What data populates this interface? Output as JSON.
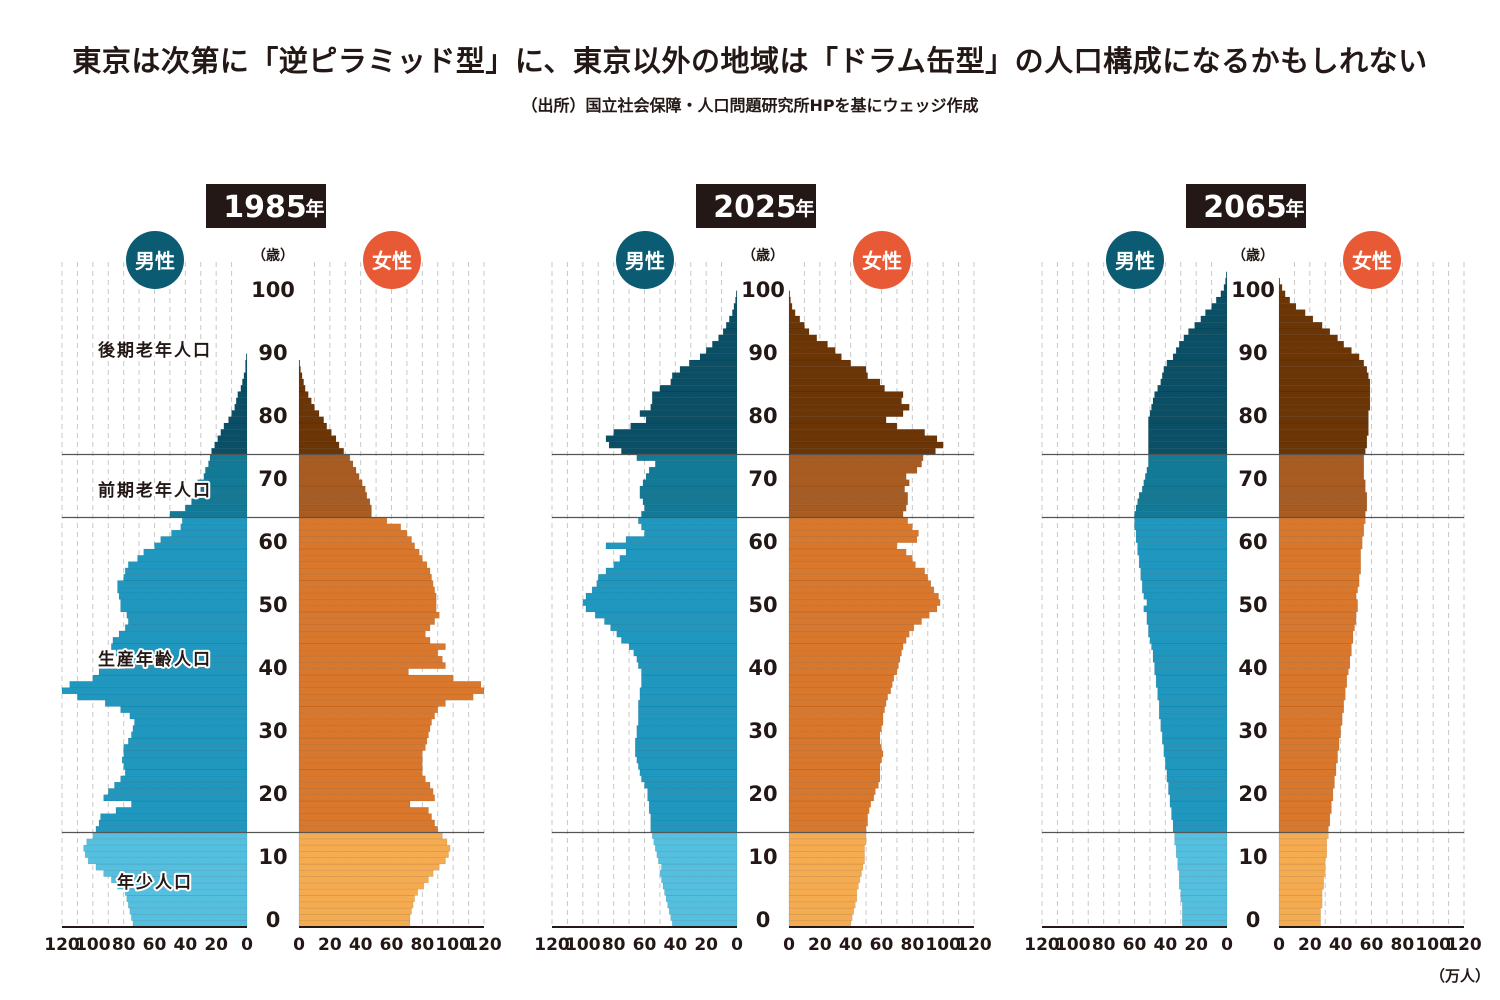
{
  "title": "東京は次第に「逆ピラミッド型」に、東京以外の地域は「ドラム缶型」の人口構成になるかもしれない",
  "subtitle": "（出所）国立社会保障・人口問題研究所HPを基にウェッジ作成",
  "unit_label": "（万人）",
  "colors": {
    "male_young": "#55bfe0",
    "male_working": "#1f97bf",
    "male_early_old": "#127a96",
    "male_late_old": "#0a4f66",
    "female_young": "#f5ab50",
    "female_working": "#d9782c",
    "female_early_old": "#a85c22",
    "female_late_old": "#6b3506",
    "male_badge": "#0b5c73",
    "female_badge": "#e85a35",
    "year_box": "#231815"
  },
  "chart_data": {
    "type": "bar",
    "subtype": "population-pyramid",
    "xlabel": "（万人）",
    "ylabel": "（歳）",
    "x_ticks_male": [
      "120",
      "100",
      "80",
      "60",
      "40",
      "20",
      "0"
    ],
    "x_ticks_female": [
      "0",
      "20",
      "40",
      "60",
      "80",
      "100",
      "120"
    ],
    "xlim": [
      0,
      120
    ],
    "age_ticks": [
      "0",
      "10",
      "20",
      "30",
      "40",
      "50",
      "60",
      "70",
      "80",
      "90",
      "100"
    ],
    "age_range": [
      0,
      105
    ],
    "grid": true,
    "age_groups": [
      {
        "label": "年少人口",
        "from": 0,
        "to": 14
      },
      {
        "label": "生産年齢人口",
        "from": 15,
        "to": 64
      },
      {
        "label": "前期老年人口",
        "from": 65,
        "to": 74
      },
      {
        "label": "後期老年人口",
        "from": 75,
        "to": 105
      }
    ],
    "male_label": "男性",
    "female_label": "女性",
    "age_unit_label": "（歳）",
    "panels": [
      {
        "year_label": "1985",
        "year_suffix": "年",
        "male": [
          74,
          75,
          76,
          77,
          78,
          79,
          84,
          88,
          93,
          98,
          103,
          105,
          106,
          104,
          100,
          98,
          96,
          95,
          85,
          75,
          93,
          90,
          86,
          82,
          79,
          80,
          81,
          80,
          80,
          77,
          75,
          74,
          73,
          76,
          82,
          92,
          110,
          120,
          115,
          100,
          96,
          79,
          82,
          85,
          88,
          87,
          83,
          79,
          77,
          78,
          82,
          82,
          83,
          84,
          84,
          80,
          79,
          77,
          71,
          67,
          60,
          56,
          49,
          43,
          42,
          50,
          40,
          36,
          31,
          30,
          32,
          28,
          27,
          25,
          24,
          23,
          21,
          19,
          17,
          15,
          12,
          10,
          8,
          7,
          6,
          4,
          3,
          2,
          1,
          1,
          0.5
        ],
        "female": [
          72,
          72,
          73,
          74,
          75,
          77,
          81,
          84,
          87,
          91,
          95,
          97,
          98,
          96,
          93,
          90,
          88,
          86,
          84,
          72,
          88,
          87,
          85,
          82,
          80,
          80,
          80,
          80,
          82,
          83,
          84,
          85,
          86,
          88,
          90,
          95,
          113,
          120,
          118,
          100,
          71,
          95,
          93,
          90,
          95,
          85,
          82,
          85,
          88,
          91,
          89,
          89,
          89,
          88,
          87,
          86,
          85,
          83,
          80,
          78,
          75,
          73,
          70,
          66,
          57,
          47,
          47,
          46,
          44,
          43,
          41,
          39,
          37,
          35,
          33,
          29,
          26,
          24,
          21,
          18,
          16,
          13,
          10,
          8,
          6,
          4,
          3,
          2,
          1,
          0.5
        ],
        "group_label_x": "left"
      },
      {
        "year_label": "2025",
        "year_suffix": "年",
        "male": [
          42,
          43,
          44,
          45,
          46,
          47,
          48,
          49,
          50,
          49,
          51,
          52,
          53,
          54,
          55,
          56,
          56,
          56,
          57,
          57,
          58,
          58,
          60,
          62,
          63,
          64,
          65,
          66,
          66,
          66,
          65,
          65,
          64,
          64,
          64,
          64,
          63,
          63,
          62,
          62,
          62,
          64,
          65,
          67,
          70,
          75,
          78,
          82,
          86,
          92,
          98,
          100,
          98,
          94,
          91,
          90,
          85,
          80,
          76,
          72,
          85,
          72,
          60,
          62,
          64,
          62,
          60,
          61,
          63,
          63,
          61,
          59,
          57,
          53,
          65,
          75,
          83,
          85,
          80,
          69,
          59,
          63,
          56,
          55,
          55,
          50,
          43,
          42,
          37,
          31,
          24,
          20,
          16,
          12,
          9,
          7,
          5,
          3,
          2,
          1,
          0.5
        ],
        "female": [
          40,
          41,
          42,
          43,
          44,
          44,
          45,
          46,
          47,
          48,
          49,
          49,
          49,
          50,
          50,
          50,
          51,
          51,
          52,
          53,
          55,
          56,
          58,
          59,
          59,
          59,
          60,
          61,
          60,
          59,
          59,
          60,
          61,
          61,
          62,
          63,
          64,
          66,
          67,
          68,
          70,
          71,
          72,
          73,
          74,
          76,
          78,
          81,
          86,
          91,
          96,
          98,
          97,
          94,
          92,
          90,
          88,
          82,
          80,
          76,
          70,
          83,
          84,
          80,
          77,
          74,
          76,
          77,
          77,
          75,
          78,
          76,
          83,
          86,
          87,
          95,
          100,
          96,
          88,
          70,
          63,
          74,
          78,
          73,
          74,
          62,
          59,
          51,
          50,
          40,
          34,
          30,
          25,
          18,
          13,
          10,
          7,
          4,
          2,
          1,
          0.5
        ],
        "group_label_x": "none"
      },
      {
        "year_label": "2065",
        "year_suffix": "年",
        "male": [
          29,
          29,
          29,
          29,
          30,
          30,
          31,
          31,
          31,
          32,
          32,
          33,
          33,
          34,
          34,
          35,
          35,
          36,
          36,
          37,
          37,
          38,
          38,
          39,
          39,
          40,
          40,
          41,
          41,
          42,
          42,
          43,
          43,
          44,
          44,
          44,
          45,
          45,
          46,
          46,
          47,
          47,
          48,
          48,
          49,
          50,
          51,
          51,
          52,
          52,
          54,
          52,
          54,
          55,
          55,
          56,
          56,
          57,
          57,
          58,
          58,
          59,
          59,
          60,
          60,
          60,
          59,
          58,
          57,
          55,
          54,
          53,
          52,
          51,
          51,
          51,
          51,
          51,
          51,
          51,
          51,
          50,
          49,
          48,
          47,
          45,
          43,
          42,
          41,
          39,
          35,
          33,
          31,
          28,
          25,
          21,
          17,
          14,
          10,
          7,
          4,
          2,
          1,
          0.5
        ],
        "female": [
          27,
          27,
          27,
          28,
          28,
          28,
          29,
          29,
          30,
          30,
          30,
          31,
          31,
          31,
          32,
          32,
          33,
          33,
          34,
          34,
          35,
          35,
          36,
          36,
          37,
          37,
          38,
          38,
          39,
          39,
          40,
          40,
          41,
          41,
          42,
          42,
          43,
          43,
          44,
          44,
          45,
          46,
          46,
          47,
          47,
          48,
          48,
          49,
          50,
          50,
          51,
          51,
          50,
          51,
          52,
          52,
          53,
          53,
          53,
          53,
          54,
          54,
          55,
          55,
          56,
          56,
          57,
          57,
          57,
          56,
          56,
          55,
          55,
          55,
          55,
          56,
          57,
          57,
          58,
          58,
          58,
          58,
          59,
          59,
          59,
          59,
          59,
          58,
          57,
          55,
          52,
          47,
          42,
          38,
          33,
          28,
          22,
          17,
          11,
          7,
          4,
          2,
          0.5
        ],
        "group_label_x": "none"
      }
    ]
  }
}
